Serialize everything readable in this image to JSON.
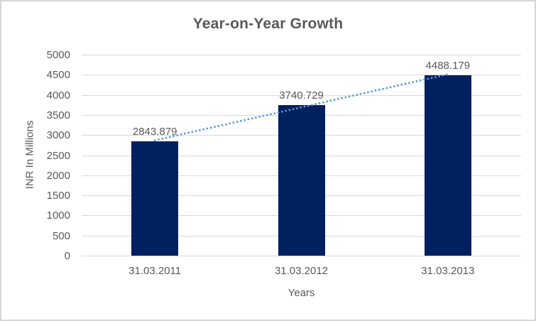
{
  "chart_data": {
    "type": "bar",
    "title": "Year-on-Year Growth",
    "xlabel": "Years",
    "ylabel": "INR In Millions",
    "categories": [
      "31.03.2011",
      "31.03.2012",
      "31.03.2013"
    ],
    "values": [
      2843.879,
      3740.729,
      4488.179
    ],
    "data_labels": [
      "2843.879",
      "3740.729",
      "4488.179"
    ],
    "ylim": [
      0,
      5000
    ],
    "ytick_step": 500,
    "yticks": [
      "0",
      "500",
      "1000",
      "1500",
      "2000",
      "2500",
      "3000",
      "3500",
      "4000",
      "4500",
      "5000"
    ],
    "grid": "horizontal",
    "legend": "none",
    "bar_color": "#002060",
    "gridline_color": "#d9d9d9",
    "text_color": "#595959",
    "trendline": {
      "type": "linear",
      "style": "dotted",
      "color": "#5b9bd5"
    }
  }
}
